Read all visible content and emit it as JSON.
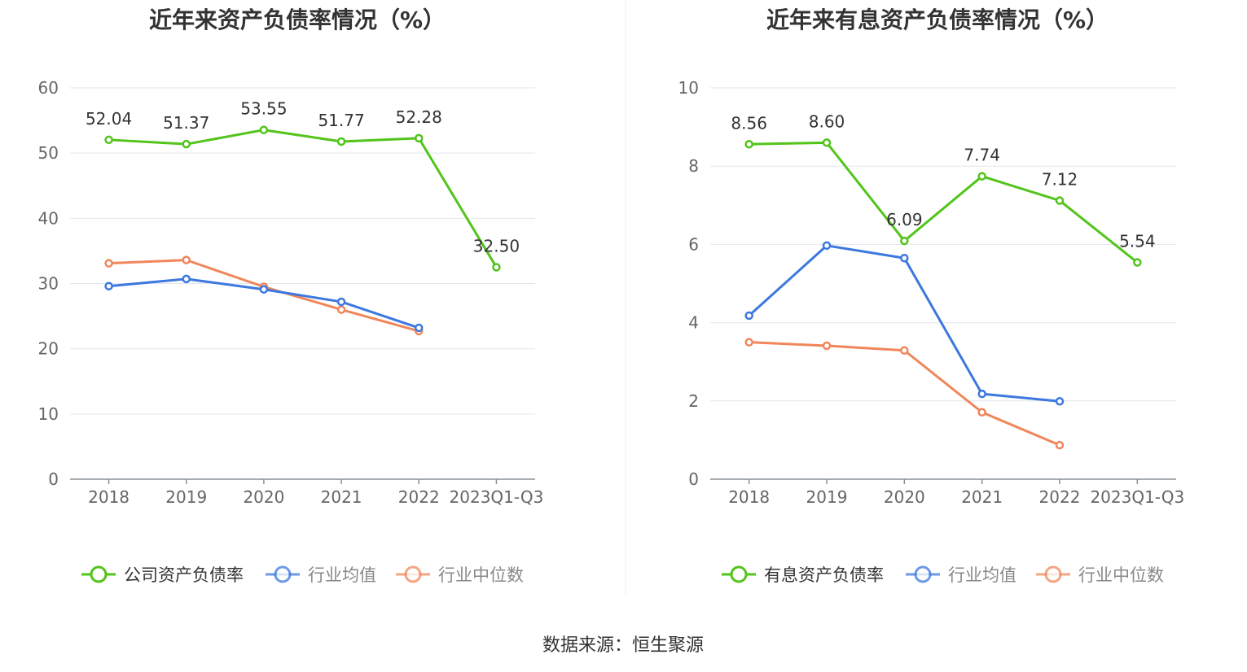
{
  "chart_data": [
    {
      "type": "line",
      "title": "近年来资产负债率情况（%）",
      "categories": [
        "2018",
        "2019",
        "2020",
        "2021",
        "2022",
        "2023Q1-Q3"
      ],
      "ylim": [
        0,
        60
      ],
      "yticks": [
        0,
        10,
        20,
        30,
        40,
        50,
        60
      ],
      "grid": true,
      "legend_position": "bottom",
      "series": [
        {
          "name": "公司资产负债率",
          "color": "#52c41a",
          "values": [
            52.04,
            51.37,
            53.55,
            51.77,
            52.28,
            32.5
          ],
          "labels": [
            "52.04",
            "51.37",
            "53.55",
            "51.77",
            "52.28",
            "32.50"
          ]
        },
        {
          "name": "行业均值",
          "color": "#3c78e0",
          "values": [
            29.6,
            30.7,
            29.1,
            27.2,
            23.2,
            null
          ]
        },
        {
          "name": "行业中位数",
          "color": "#f0865a",
          "values": [
            33.1,
            33.6,
            29.5,
            26.0,
            22.7,
            null
          ]
        }
      ]
    },
    {
      "type": "line",
      "title": "近年来有息资产负债率情况（%）",
      "categories": [
        "2018",
        "2019",
        "2020",
        "2021",
        "2022",
        "2023Q1-Q3"
      ],
      "ylim": [
        0,
        10
      ],
      "yticks": [
        0,
        2,
        4,
        6,
        8,
        10
      ],
      "grid": true,
      "legend_position": "bottom",
      "series": [
        {
          "name": "有息资产负债率",
          "color": "#52c41a",
          "values": [
            8.56,
            8.6,
            6.09,
            7.74,
            7.12,
            5.54
          ],
          "labels": [
            "8.56",
            "8.60",
            "6.09",
            "7.74",
            "7.12",
            "5.54"
          ]
        },
        {
          "name": "行业均值",
          "color": "#3c78e0",
          "values": [
            4.18,
            5.97,
            5.65,
            2.18,
            1.99,
            null
          ]
        },
        {
          "name": "行业中位数",
          "color": "#f0865a",
          "values": [
            3.5,
            3.41,
            3.29,
            1.71,
            0.87,
            null
          ]
        }
      ]
    }
  ],
  "source": "数据来源：恒生聚源"
}
